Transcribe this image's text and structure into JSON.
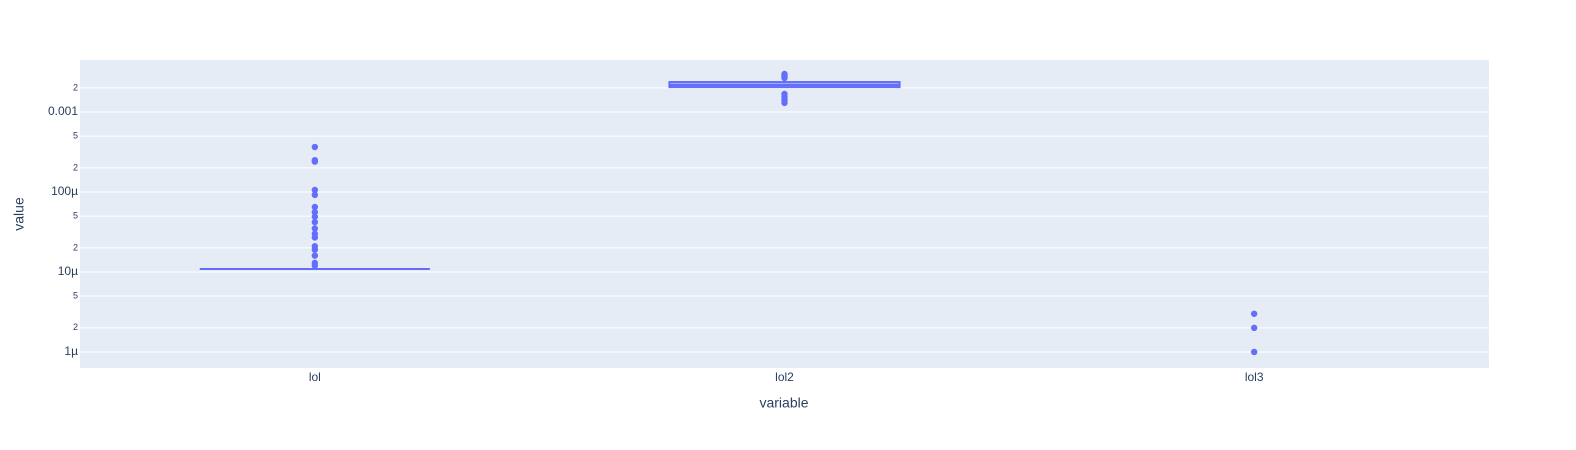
{
  "chart_data": {
    "type": "box",
    "xlabel": "variable",
    "ylabel": "value",
    "categories": [
      "lol",
      "lol2",
      "lol3"
    ],
    "color": "#636efa",
    "log_y": true,
    "grid": true,
    "ylim": [
      6.3e-07,
      0.00447
    ],
    "yticks": [
      {
        "value": 1e-06,
        "label": "1µ"
      },
      {
        "value": 2e-06,
        "label": "2"
      },
      {
        "value": 5e-06,
        "label": "5"
      },
      {
        "value": 1e-05,
        "label": "10µ"
      },
      {
        "value": 2e-05,
        "label": "2"
      },
      {
        "value": 5e-05,
        "label": "5"
      },
      {
        "value": 0.0001,
        "label": "100µ"
      },
      {
        "value": 0.0002,
        "label": "2"
      },
      {
        "value": 0.0005,
        "label": "5"
      },
      0.001,
      {
        "value": 0.002,
        "label": "2"
      }
    ],
    "boxes": [
      {
        "lowerfence": 1.09e-05,
        "q1": 1.09e-05,
        "median": 1.09e-05,
        "q3": 1.09e-05,
        "upperfence": 1.09e-05,
        "outliers": [
          0.000365,
          0.00025,
          0.00024,
          0.000106,
          9.2e-05,
          6.5e-05,
          5.6e-05,
          4.9e-05,
          4.2e-05,
          3.5e-05,
          3e-05,
          2.7e-05,
          2.1e-05,
          1.9e-05,
          1.6e-05,
          1.3e-05,
          1.2e-05
        ]
      },
      {
        "lowerfence": 0.002,
        "q1": 0.00205,
        "median": 0.00218,
        "q3": 0.00237,
        "upperfence": 0.00251,
        "outliers": [
          0.00299,
          0.00282,
          0.00266,
          0.00168,
          0.00154,
          0.00141,
          0.0013
        ]
      },
      {
        "outliers": [
          1e-06,
          2e-06,
          3e-06
        ]
      }
    ]
  }
}
